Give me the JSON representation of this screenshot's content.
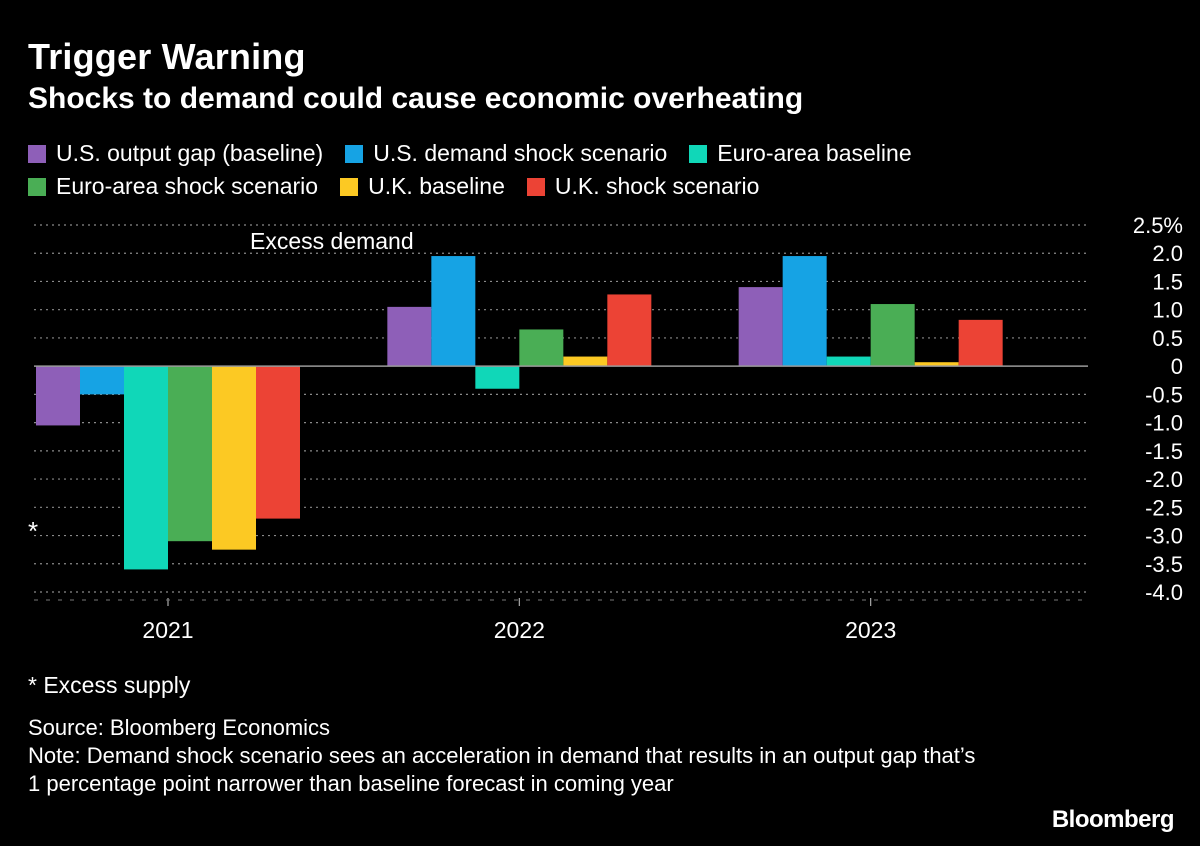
{
  "title": "Trigger Warning",
  "subtitle": "Shocks to demand could cause economic overheating",
  "legend": [
    {
      "label": "U.S. output gap (baseline)",
      "color": "#8e5fb8"
    },
    {
      "label": "U.S. demand shock scenario",
      "color": "#16a3e4"
    },
    {
      "label": "Euro-area baseline",
      "color": "#10d7b8"
    },
    {
      "label": "Euro-area shock scenario",
      "color": "#4aae55"
    },
    {
      "label": "U.K. baseline",
      "color": "#fcc923"
    },
    {
      "label": "U.K. shock scenario",
      "color": "#ec4335"
    }
  ],
  "chart_data": {
    "type": "bar",
    "categories": [
      "2021",
      "2022",
      "2023"
    ],
    "series": [
      {
        "name": "U.S. output gap (baseline)",
        "color": "#8e5fb8",
        "values": [
          -1.05,
          1.05,
          1.4
        ]
      },
      {
        "name": "U.S. demand shock scenario",
        "color": "#16a3e4",
        "values": [
          -0.5,
          1.95,
          1.95
        ]
      },
      {
        "name": "Euro-area baseline",
        "color": "#10d7b8",
        "values": [
          -3.6,
          -0.4,
          0.17
        ]
      },
      {
        "name": "Euro-area shock scenario",
        "color": "#4aae55",
        "values": [
          -3.1,
          0.65,
          1.1
        ]
      },
      {
        "name": "U.K. baseline",
        "color": "#fcc923",
        "values": [
          -3.25,
          0.17,
          0.07
        ]
      },
      {
        "name": "U.K. shock scenario",
        "color": "#ec4335",
        "values": [
          -2.7,
          1.27,
          0.82
        ]
      }
    ],
    "ylim": [
      -4.0,
      2.5
    ],
    "yticks": [
      "2.5%",
      "2.0",
      "1.5",
      "1.0",
      "0.5",
      "0",
      "-0.5",
      "-1.0",
      "-1.5",
      "-2.0",
      "-2.5",
      "-3.0",
      "-3.5",
      "-4.0"
    ],
    "ytick_values": [
      2.5,
      2.0,
      1.5,
      1.0,
      0.5,
      0,
      -0.5,
      -1.0,
      -1.5,
      -2.0,
      -2.5,
      -3.0,
      -3.5,
      -4.0
    ],
    "annotations": {
      "top": "Excess demand",
      "bottom": "*"
    },
    "grid": true,
    "axis_side": "right",
    "legend_position": "top"
  },
  "footnote": "* Excess supply",
  "source": "Source: Bloomberg Economics",
  "note": "Note: Demand shock scenario sees an acceleration in demand that results in an output gap that’s 1 percentage point narrower than baseline forecast in coming year",
  "brand": "Bloomberg"
}
